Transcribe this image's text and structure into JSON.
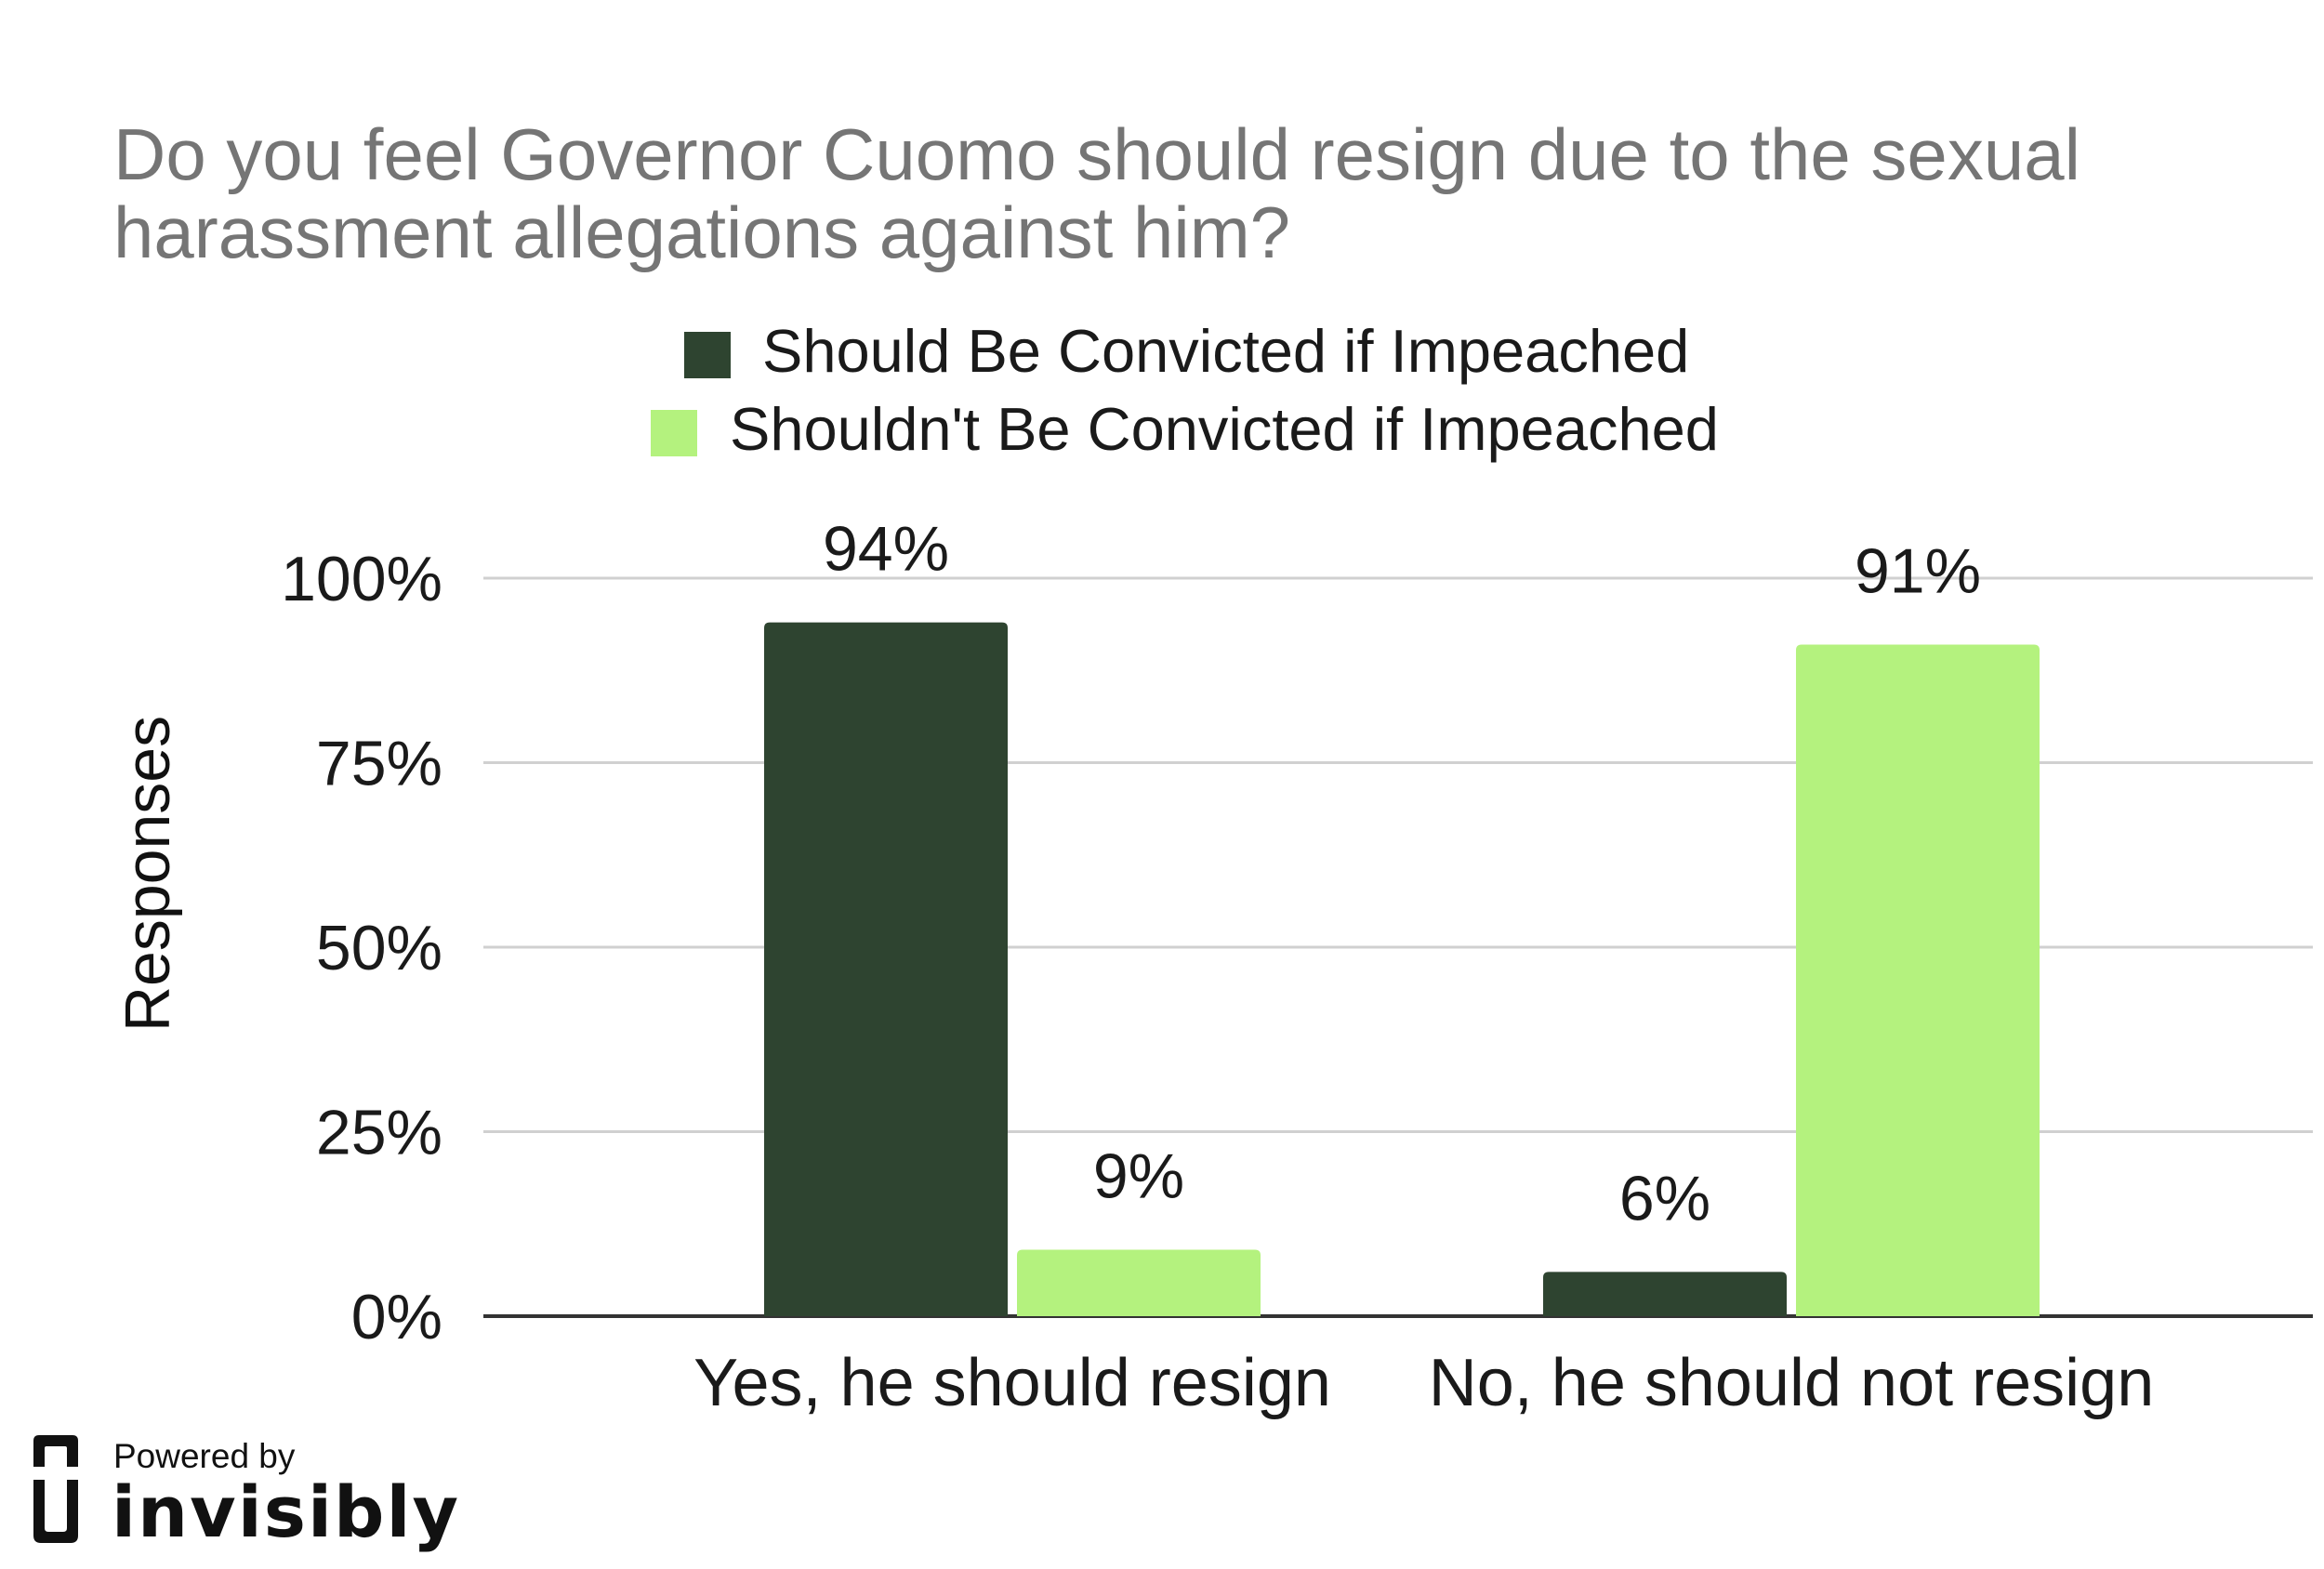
{
  "chart_data": {
    "type": "bar",
    "title": "Do you feel Governor Cuomo should resign due to the sexual harassment allegations against him?",
    "title_lines": [
      "Do you feel Governor Cuomo should resign due to the sexual",
      "harassment allegations against him?"
    ],
    "ylabel": "Responses",
    "xlabel": "",
    "categories": [
      "Yes, he should resign",
      "No, he should not resign"
    ],
    "series": [
      {
        "name": "Should Be Convicted if Impeached",
        "values": [
          94,
          6
        ],
        "labels": [
          "94%",
          "6%"
        ],
        "color": "#2e4430"
      },
      {
        "name": "Shouldn't Be Convicted if Impeached",
        "values": [
          9,
          91
        ],
        "labels": [
          "9%",
          "91%"
        ],
        "color": "#b4f27e"
      }
    ],
    "ylim": [
      0,
      100
    ],
    "yticks": [
      0,
      25,
      50,
      75,
      100
    ],
    "ytick_labels": [
      "0%",
      "25%",
      "50%",
      "75%",
      "100%"
    ],
    "grid": true,
    "gridline_color": "#d0d0d0",
    "axis_color": "#333333",
    "legend_placement": "top-center"
  },
  "branding": {
    "powered_by": "Powered by",
    "name": "invisibly"
  }
}
